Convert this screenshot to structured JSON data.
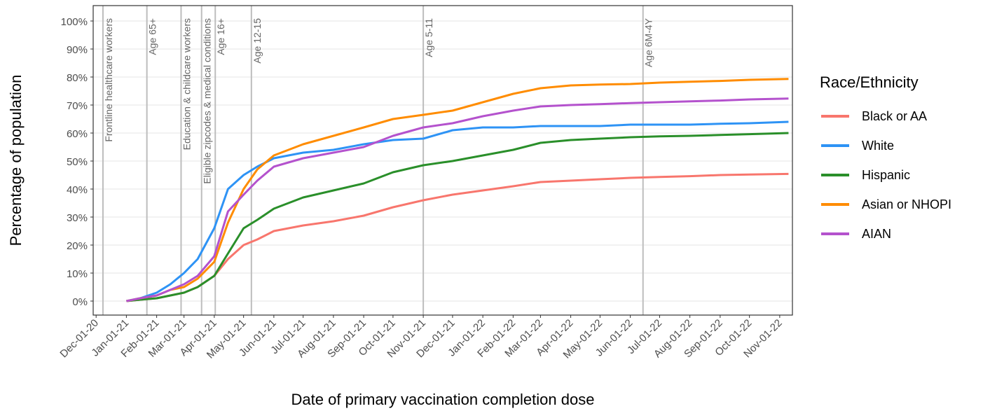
{
  "chart_data": {
    "type": "line",
    "xlabel": "Date of primary vaccination completion dose",
    "ylabel": "Percentage of population",
    "legend_title": "Race/Ethnicity",
    "legend_position": "right",
    "grid": true,
    "x": [
      "2021-01-01",
      "2021-01-15",
      "2021-02-01",
      "2021-02-15",
      "2021-03-01",
      "2021-03-15",
      "2021-04-01",
      "2021-04-15",
      "2021-05-01",
      "2021-05-15",
      "2021-06-01",
      "2021-07-01",
      "2021-08-01",
      "2021-09-01",
      "2021-10-01",
      "2021-11-01",
      "2021-12-01",
      "2022-01-01",
      "2022-02-01",
      "2022-03-01",
      "2022-04-01",
      "2022-05-01",
      "2022-06-01",
      "2022-07-01",
      "2022-08-01",
      "2022-09-01",
      "2022-10-01",
      "2022-11-10"
    ],
    "series": [
      {
        "name": "Black or AA",
        "color": "#f8766d",
        "values": [
          0,
          0.5,
          1,
          2,
          3,
          5,
          9,
          15,
          20,
          22,
          25,
          27,
          28.5,
          30.5,
          33.5,
          36,
          38,
          39.5,
          41,
          42.5,
          43,
          43.5,
          44,
          44.3,
          44.6,
          45,
          45.2,
          45.4
        ]
      },
      {
        "name": "White",
        "color": "#2e93f5",
        "values": [
          0,
          1,
          3,
          6,
          10,
          15,
          26,
          40,
          45,
          48,
          51,
          53,
          54,
          56,
          57.5,
          58,
          61,
          62,
          62,
          62.5,
          62.5,
          62.5,
          63,
          63,
          63,
          63.3,
          63.5,
          64
        ]
      },
      {
        "name": "Hispanic",
        "color": "#2a8f2a",
        "values": [
          0,
          0.5,
          1,
          2,
          3,
          5,
          9,
          17,
          26,
          29,
          33,
          37,
          39.5,
          42,
          46,
          48.5,
          50,
          52,
          54,
          56.5,
          57.5,
          58,
          58.5,
          58.8,
          59,
          59.3,
          59.6,
          60
        ]
      },
      {
        "name": "Asian or NHOPI",
        "color": "#ff8c00",
        "values": [
          0,
          1,
          2,
          4,
          5,
          8,
          14,
          28,
          40,
          47,
          52,
          56,
          59,
          62,
          65,
          66.5,
          68,
          71,
          74,
          76,
          77,
          77.3,
          77.5,
          78,
          78.3,
          78.6,
          79,
          79.3
        ]
      },
      {
        "name": "AIAN",
        "color": "#b452cd",
        "values": [
          0,
          1,
          2,
          4,
          6,
          9,
          16,
          32,
          38,
          43,
          48,
          51,
          53,
          55,
          59,
          62,
          63.5,
          66,
          68,
          69.5,
          70,
          70.3,
          70.7,
          71,
          71.3,
          71.6,
          72,
          72.3
        ]
      }
    ],
    "annotations": [
      {
        "x": "2020-12-08",
        "label": "Frontline healthcare workers"
      },
      {
        "x": "2021-01-22",
        "label": "Age 65+"
      },
      {
        "x": "2021-02-26",
        "label": "Education & childcare workers"
      },
      {
        "x": "2021-03-19",
        "label": "Eligible zipcodes & medical conditions"
      },
      {
        "x": "2021-04-02",
        "label": "Age 16+"
      },
      {
        "x": "2021-05-09",
        "label": "Age 12-15"
      },
      {
        "x": "2021-11-01",
        "label": "Age 5-11"
      },
      {
        "x": "2022-06-14",
        "label": "Age 6M-4Y"
      }
    ],
    "xlim": [
      "2020-11-28",
      "2022-11-14"
    ],
    "xticks": [
      {
        "value": "2020-12-01",
        "label": "Dec-01-20"
      },
      {
        "value": "2021-01-01",
        "label": "Jan-01-21"
      },
      {
        "value": "2021-02-01",
        "label": "Feb-01-21"
      },
      {
        "value": "2021-03-01",
        "label": "Mar-01-21"
      },
      {
        "value": "2021-04-01",
        "label": "Apr-01-21"
      },
      {
        "value": "2021-05-01",
        "label": "May-01-21"
      },
      {
        "value": "2021-06-01",
        "label": "Jun-01-21"
      },
      {
        "value": "2021-07-01",
        "label": "Jul-01-21"
      },
      {
        "value": "2021-08-01",
        "label": "Aug-01-21"
      },
      {
        "value": "2021-09-01",
        "label": "Sep-01-21"
      },
      {
        "value": "2021-10-01",
        "label": "Oct-01-21"
      },
      {
        "value": "2021-11-01",
        "label": "Nov-01-21"
      },
      {
        "value": "2021-12-01",
        "label": "Dec-01-21"
      },
      {
        "value": "2022-01-01",
        "label": "Jan-01-22"
      },
      {
        "value": "2022-02-01",
        "label": "Feb-01-22"
      },
      {
        "value": "2022-03-01",
        "label": "Mar-01-22"
      },
      {
        "value": "2022-04-01",
        "label": "Apr-01-22"
      },
      {
        "value": "2022-05-01",
        "label": "May-01-22"
      },
      {
        "value": "2022-06-01",
        "label": "Jun-01-22"
      },
      {
        "value": "2022-07-01",
        "label": "Jul-01-22"
      },
      {
        "value": "2022-08-01",
        "label": "Aug-01-22"
      },
      {
        "value": "2022-09-01",
        "label": "Sep-01-22"
      },
      {
        "value": "2022-10-01",
        "label": "Oct-01-22"
      },
      {
        "value": "2022-11-01",
        "label": "Nov-01-22"
      }
    ],
    "ylim": [
      -5,
      105.5
    ],
    "yticks": [
      {
        "value": 0,
        "label": "0%"
      },
      {
        "value": 10,
        "label": "10%"
      },
      {
        "value": 20,
        "label": "20%"
      },
      {
        "value": 30,
        "label": "30%"
      },
      {
        "value": 40,
        "label": "40%"
      },
      {
        "value": 50,
        "label": "50%"
      },
      {
        "value": 60,
        "label": "60%"
      },
      {
        "value": 70,
        "label": "70%"
      },
      {
        "value": 80,
        "label": "80%"
      },
      {
        "value": 90,
        "label": "90%"
      },
      {
        "value": 100,
        "label": "100%"
      }
    ]
  }
}
